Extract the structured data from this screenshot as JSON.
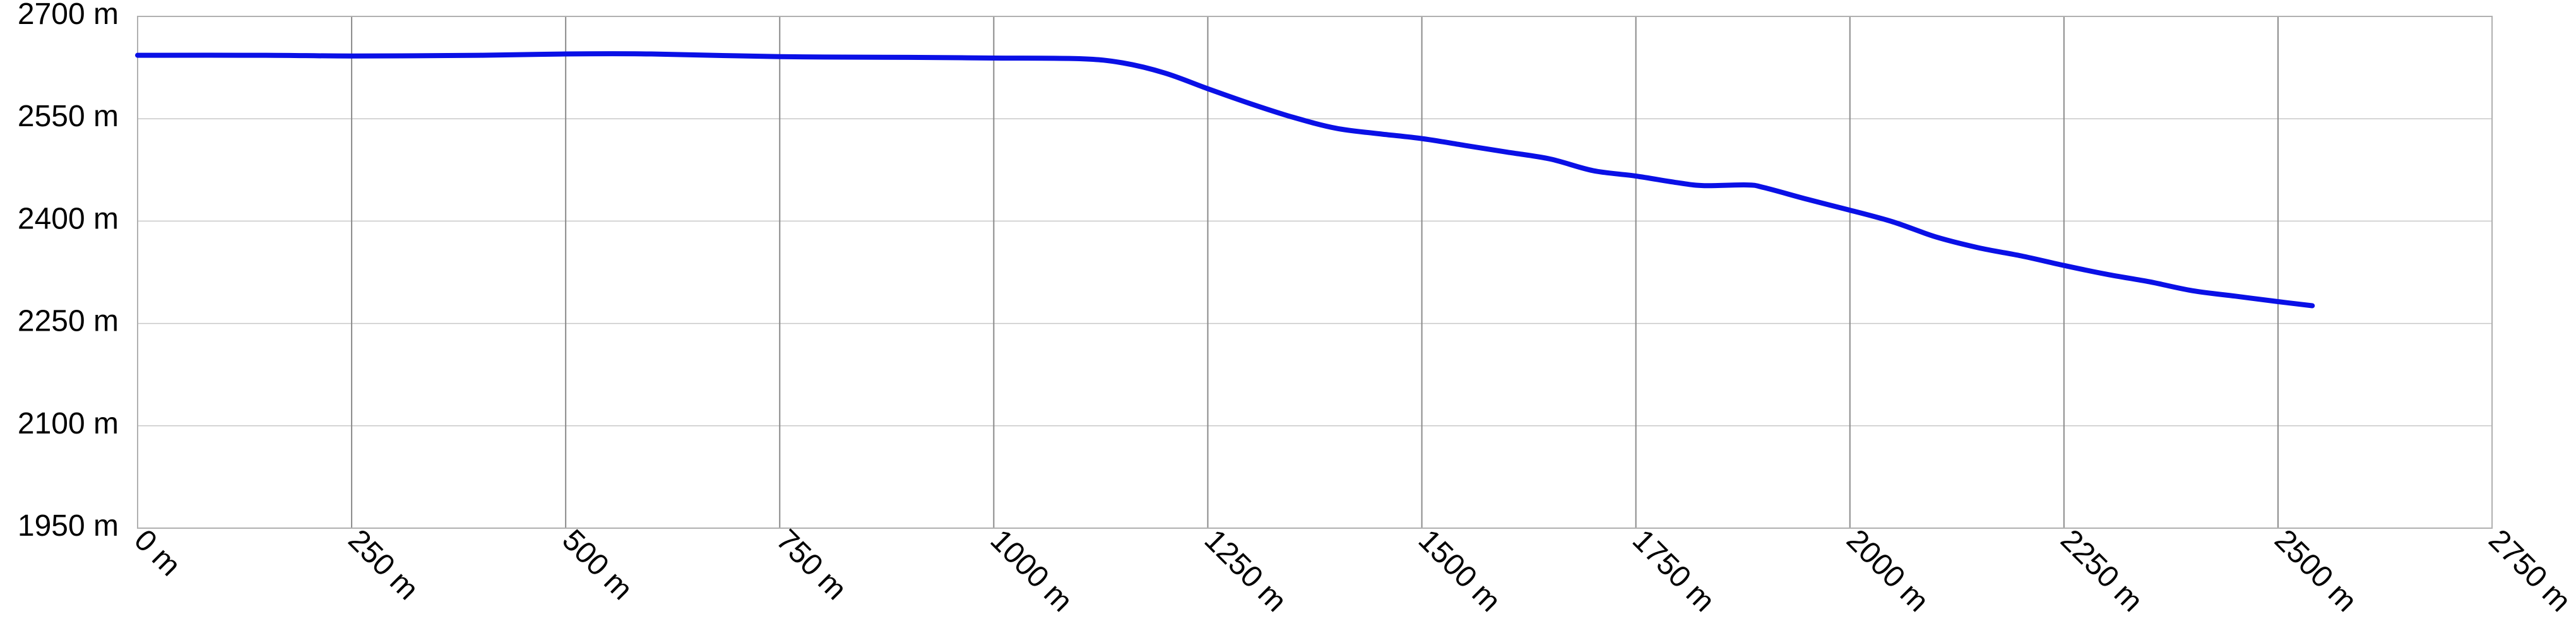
{
  "chart_data": {
    "type": "line",
    "title": "",
    "xlabel": "",
    "ylabel": "",
    "unit": "m",
    "xlim": [
      0,
      2750
    ],
    "ylim": [
      1950,
      2700
    ],
    "x_ticks": [
      0,
      250,
      500,
      750,
      1000,
      1250,
      1500,
      1750,
      2000,
      2250,
      2500,
      2750
    ],
    "y_ticks": [
      1950,
      2100,
      2250,
      2400,
      2550,
      2700
    ],
    "x_tick_labels": [
      "0 m",
      "250 m",
      "500 m",
      "750 m",
      "1000 m",
      "1250 m",
      "1500 m",
      "1750 m",
      "2000 m",
      "2250 m",
      "2500 m",
      "2750 m"
    ],
    "y_tick_labels": [
      "1950 m",
      "2100 m",
      "2250 m",
      "2400 m",
      "2550 m",
      "2700 m"
    ],
    "grid": true,
    "legend": "none",
    "colors": {
      "line": "#0a10e6",
      "grid_minor": "#c8c8c8",
      "grid_major": "#8a8a8a"
    },
    "series": [
      {
        "x": [
          0,
          150,
          250,
          400,
          500,
          600,
          750,
          900,
          1000,
          1100,
          1150,
          1200,
          1250,
          1300,
          1350,
          1400,
          1450,
          1500,
          1550,
          1600,
          1650,
          1700,
          1750,
          1800,
          1830,
          1880,
          1900,
          1950,
          2000,
          2050,
          2100,
          2150,
          2200,
          2250,
          2300,
          2350,
          2400,
          2450,
          2500,
          2540
        ],
        "y": [
          2643,
          2643,
          2642,
          2643,
          2645,
          2645,
          2641,
          2640,
          2639,
          2638,
          2632,
          2617,
          2594,
          2572,
          2552,
          2536,
          2528,
          2521,
          2511,
          2501,
          2491,
          2474,
          2466,
          2456,
          2452,
          2453,
          2449,
          2432,
          2416,
          2399,
          2377,
          2361,
          2349,
          2335,
          2322,
          2311,
          2298,
          2290,
          2282,
          2276
        ]
      }
    ]
  }
}
